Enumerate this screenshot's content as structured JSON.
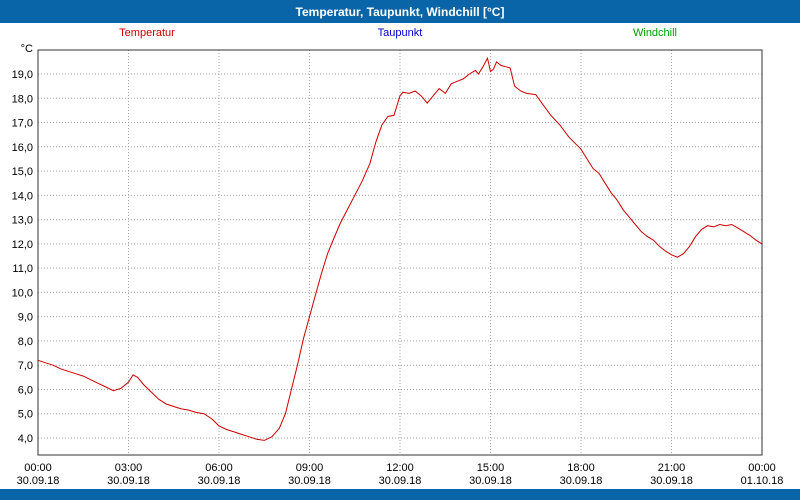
{
  "title_bar": {
    "title": "Temperatur, Taupunkt, Windchill [°C]"
  },
  "legend": [
    {
      "label": "Temperatur",
      "color": "#cc0000"
    },
    {
      "label": "Taupunkt",
      "color": "#0000c8"
    },
    {
      "label": "Windchill",
      "color": "#00a000"
    }
  ],
  "colors": {
    "header_bg": "#0a64a8",
    "footer_bg": "#0a64a8",
    "grid": "#a6a6a6",
    "plot_border": "#333333"
  },
  "chart_data": {
    "type": "line",
    "title": "Temperatur, Taupunkt, Windchill [°C]",
    "xlabel": "",
    "ylabel": "°C",
    "y_unit_label": "°C",
    "grid": "dotted",
    "legend_position": "top",
    "x_range": [
      0,
      24
    ],
    "ylim": [
      3.3,
      20.0
    ],
    "y_ticks": [
      {
        "value": 4,
        "label": "4,0"
      },
      {
        "value": 5,
        "label": "5,0"
      },
      {
        "value": 6,
        "label": "6,0"
      },
      {
        "value": 7,
        "label": "7,0"
      },
      {
        "value": 8,
        "label": "8,0"
      },
      {
        "value": 9,
        "label": "9,0"
      },
      {
        "value": 10,
        "label": "10,0"
      },
      {
        "value": 11,
        "label": "11,0"
      },
      {
        "value": 12,
        "label": "12,0"
      },
      {
        "value": 13,
        "label": "13,0"
      },
      {
        "value": 14,
        "label": "14,0"
      },
      {
        "value": 15,
        "label": "15,0"
      },
      {
        "value": 16,
        "label": "16,0"
      },
      {
        "value": 17,
        "label": "17,0"
      },
      {
        "value": 18,
        "label": "18,0"
      },
      {
        "value": 19,
        "label": "19,0"
      }
    ],
    "x_ticks": [
      {
        "hour": 0,
        "time": "00:00",
        "date": "30.09.18"
      },
      {
        "hour": 3,
        "time": "03:00",
        "date": "30.09.18"
      },
      {
        "hour": 6,
        "time": "06:00",
        "date": "30.09.18"
      },
      {
        "hour": 9,
        "time": "09:00",
        "date": "30.09.18"
      },
      {
        "hour": 12,
        "time": "12:00",
        "date": "30.09.18"
      },
      {
        "hour": 15,
        "time": "15:00",
        "date": "30.09.18"
      },
      {
        "hour": 18,
        "time": "18:00",
        "date": "30.09.18"
      },
      {
        "hour": 21,
        "time": "21:00",
        "date": "30.09.18"
      },
      {
        "hour": 24,
        "time": "00:00",
        "date": "01.10.18"
      }
    ],
    "series": [
      {
        "name": "Temperatur",
        "color": "#cc0000",
        "points": [
          [
            0,
            7.2
          ],
          [
            0.25,
            7.1
          ],
          [
            0.5,
            7.0
          ],
          [
            0.75,
            6.85
          ],
          [
            1,
            6.75
          ],
          [
            1.25,
            6.65
          ],
          [
            1.5,
            6.55
          ],
          [
            1.75,
            6.4
          ],
          [
            2,
            6.25
          ],
          [
            2.25,
            6.1
          ],
          [
            2.5,
            5.95
          ],
          [
            2.75,
            6.05
          ],
          [
            3,
            6.3
          ],
          [
            3.15,
            6.6
          ],
          [
            3.3,
            6.5
          ],
          [
            3.5,
            6.2
          ],
          [
            3.75,
            5.9
          ],
          [
            4,
            5.6
          ],
          [
            4.25,
            5.4
          ],
          [
            4.5,
            5.3
          ],
          [
            4.75,
            5.2
          ],
          [
            5,
            5.15
          ],
          [
            5.25,
            5.05
          ],
          [
            5.5,
            5.0
          ],
          [
            5.75,
            4.8
          ],
          [
            6,
            4.5
          ],
          [
            6.25,
            4.35
          ],
          [
            6.5,
            4.25
          ],
          [
            6.75,
            4.15
          ],
          [
            7,
            4.05
          ],
          [
            7.25,
            3.95
          ],
          [
            7.5,
            3.9
          ],
          [
            7.75,
            4.05
          ],
          [
            8,
            4.4
          ],
          [
            8.2,
            5.0
          ],
          [
            8.4,
            6.0
          ],
          [
            8.6,
            7.0
          ],
          [
            8.8,
            8.1
          ],
          [
            9,
            9.0
          ],
          [
            9.2,
            9.9
          ],
          [
            9.4,
            10.8
          ],
          [
            9.6,
            11.6
          ],
          [
            9.8,
            12.2
          ],
          [
            10,
            12.8
          ],
          [
            10.25,
            13.4
          ],
          [
            10.5,
            14.0
          ],
          [
            10.75,
            14.6
          ],
          [
            11,
            15.3
          ],
          [
            11.2,
            16.2
          ],
          [
            11.4,
            16.9
          ],
          [
            11.6,
            17.25
          ],
          [
            11.8,
            17.3
          ],
          [
            11.9,
            17.7
          ],
          [
            12,
            18.1
          ],
          [
            12.1,
            18.25
          ],
          [
            12.3,
            18.2
          ],
          [
            12.5,
            18.3
          ],
          [
            12.7,
            18.1
          ],
          [
            12.9,
            17.8
          ],
          [
            13.1,
            18.1
          ],
          [
            13.3,
            18.4
          ],
          [
            13.5,
            18.2
          ],
          [
            13.7,
            18.6
          ],
          [
            13.9,
            18.7
          ],
          [
            14.1,
            18.8
          ],
          [
            14.3,
            19.0
          ],
          [
            14.5,
            19.15
          ],
          [
            14.6,
            19.0
          ],
          [
            14.75,
            19.3
          ],
          [
            14.9,
            19.65
          ],
          [
            15,
            19.1
          ],
          [
            15.1,
            19.2
          ],
          [
            15.2,
            19.5
          ],
          [
            15.35,
            19.35
          ],
          [
            15.5,
            19.3
          ],
          [
            15.65,
            19.25
          ],
          [
            15.8,
            18.5
          ],
          [
            16,
            18.3
          ],
          [
            16.2,
            18.2
          ],
          [
            16.5,
            18.15
          ],
          [
            16.7,
            17.8
          ],
          [
            17,
            17.3
          ],
          [
            17.3,
            16.9
          ],
          [
            17.6,
            16.4
          ],
          [
            17.8,
            16.15
          ],
          [
            18,
            15.9
          ],
          [
            18.2,
            15.5
          ],
          [
            18.4,
            15.1
          ],
          [
            18.6,
            14.9
          ],
          [
            18.8,
            14.5
          ],
          [
            19,
            14.1
          ],
          [
            19.2,
            13.8
          ],
          [
            19.4,
            13.4
          ],
          [
            19.6,
            13.1
          ],
          [
            19.8,
            12.8
          ],
          [
            20,
            12.5
          ],
          [
            20.2,
            12.3
          ],
          [
            20.4,
            12.15
          ],
          [
            20.6,
            11.9
          ],
          [
            20.8,
            11.7
          ],
          [
            21,
            11.55
          ],
          [
            21.2,
            11.45
          ],
          [
            21.4,
            11.6
          ],
          [
            21.6,
            11.9
          ],
          [
            21.8,
            12.3
          ],
          [
            22,
            12.6
          ],
          [
            22.2,
            12.75
          ],
          [
            22.4,
            12.7
          ],
          [
            22.6,
            12.8
          ],
          [
            22.8,
            12.75
          ],
          [
            23,
            12.8
          ],
          [
            23.2,
            12.65
          ],
          [
            23.4,
            12.5
          ],
          [
            23.6,
            12.35
          ],
          [
            23.8,
            12.15
          ],
          [
            24,
            12.0
          ]
        ]
      }
    ]
  }
}
